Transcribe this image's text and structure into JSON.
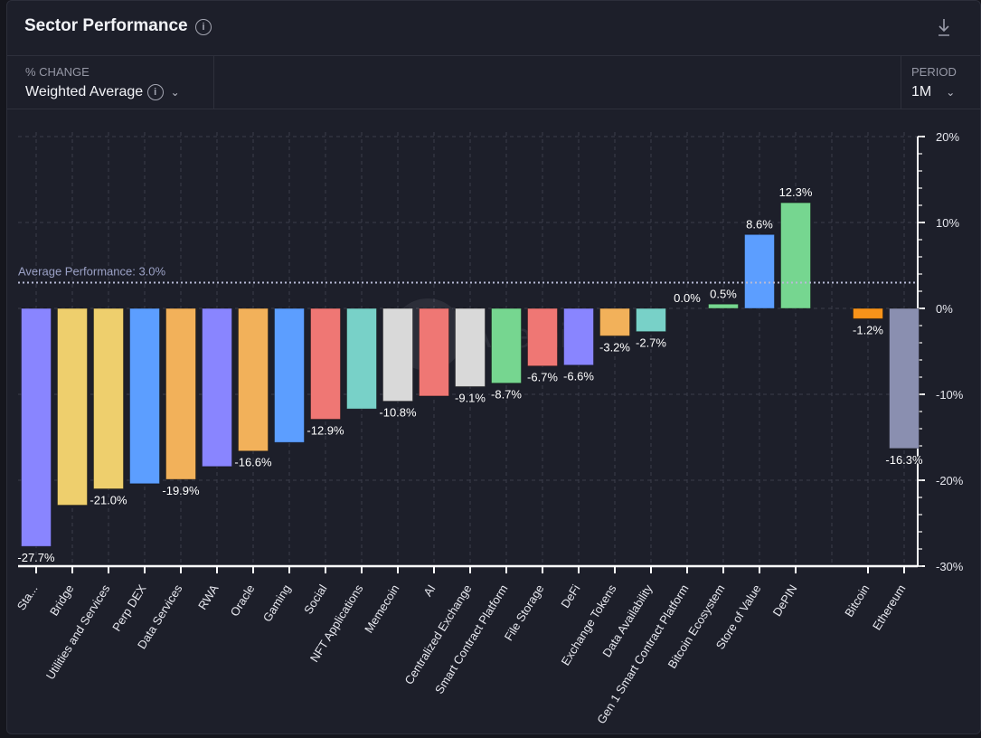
{
  "header": {
    "title": "Sector Performance",
    "info_icon": "info-icon",
    "download_icon": "download-icon"
  },
  "controls": {
    "metric_label": "% CHANGE",
    "metric_value": "Weighted Average",
    "period_label": "PERIOD",
    "period_value": "1M"
  },
  "watermark": "Artemis",
  "colors": {
    "background": "#1d1f2a",
    "purple": "#8985ff",
    "yellow": "#eecf6d",
    "blue": "#5c9eff",
    "orange": "#f2b15a",
    "red": "#ef7774",
    "teal": "#78d1c8",
    "grey": "#d9d9d9",
    "green": "#76d690",
    "bitcoin": "#f7931a",
    "ethereum": "#8a8fb0"
  },
  "chart_data": {
    "type": "bar",
    "ylim": [
      -30,
      20
    ],
    "yticks": [
      "20%",
      "10%",
      "0%",
      "-10%",
      "-20%",
      "-30%"
    ],
    "ytick_values": [
      20,
      10,
      0,
      -10,
      -20,
      -30
    ],
    "grid": true,
    "axis_side": "right",
    "average": {
      "label": "Average Performance: 3.0%",
      "value": 3.0
    },
    "categories": [
      "Sta...",
      "Bridge",
      "Utilities and Services",
      "Perp DEX",
      "Data Services",
      "RWA",
      "Oracle",
      "Gaming",
      "Social",
      "NFT Applications",
      "Memecoin",
      "AI",
      "Centralized Exchange",
      "Smart Contract Platform",
      "File Storage",
      "DeFi",
      "Exchange Tokens",
      "Data Availability",
      "Gen 1 Smart Contract Platform",
      "Bitcoin Ecosystem",
      "Store of Value",
      "DePIN",
      "",
      "Bitcoin",
      "Ethereum"
    ],
    "values": [
      -27.7,
      -22.9,
      -21.0,
      -20.4,
      -19.9,
      -18.4,
      -16.6,
      -15.6,
      -12.9,
      -11.7,
      -10.8,
      -10.2,
      -9.1,
      -8.7,
      -6.7,
      -6.6,
      -3.2,
      -2.7,
      0.0,
      0.5,
      8.6,
      12.3,
      null,
      -1.2,
      -16.3
    ],
    "data_labels": [
      "-27.7%",
      "",
      "-21.0%",
      "",
      "-19.9%",
      "",
      "-16.6%",
      "",
      "-12.9%",
      "",
      "-10.8%",
      "",
      "-9.1%",
      "-8.7%",
      "-6.7%",
      "-6.6%",
      "-3.2%",
      "-2.7%",
      "0.0%",
      "0.5%",
      "8.6%",
      "12.3%",
      "",
      "-1.2%",
      "-16.3%"
    ],
    "bar_colors": [
      "#8985ff",
      "#eecf6d",
      "#eecf6d",
      "#5c9eff",
      "#f2b15a",
      "#8985ff",
      "#f2b15a",
      "#5c9eff",
      "#ef7774",
      "#78d1c8",
      "#d9d9d9",
      "#ef7774",
      "#d9d9d9",
      "#76d690",
      "#ef7774",
      "#8985ff",
      "#f2b15a",
      "#78d1c8",
      "#76d690",
      "#76d690",
      "#5c9eff",
      "#76d690",
      "",
      "#f7931a",
      "#8a8fb0"
    ]
  }
}
